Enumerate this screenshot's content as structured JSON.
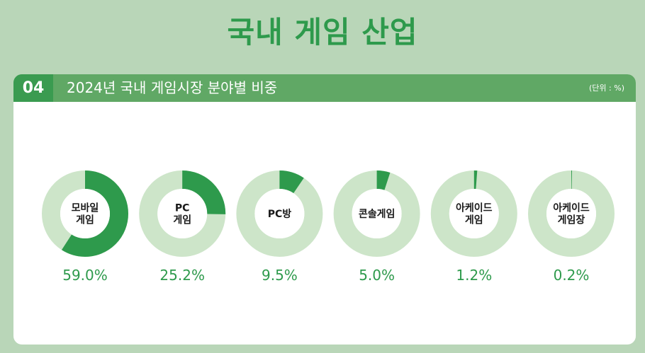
{
  "page": {
    "title": "국내 게임 산업"
  },
  "section": {
    "number": "04",
    "title": "2024년 국내 게임시장 분야별 비중",
    "unit": "(단위 : %)"
  },
  "colors": {
    "accent": "#2e9a4c",
    "track": "#cde5c9",
    "header": "#60a865",
    "background": "#b9d6b8"
  },
  "chart_data": {
    "type": "pie",
    "title": "2024년 국내 게임시장 분야별 비중",
    "unit": "%",
    "categories": [
      [
        "모바일",
        "게임"
      ],
      [
        "PC",
        "게임"
      ],
      [
        "PC방"
      ],
      [
        "콘솔게임"
      ],
      [
        "아케이드",
        "게임"
      ],
      [
        "아케이드",
        "게임장"
      ]
    ],
    "values": [
      59.0,
      25.2,
      9.5,
      5.0,
      1.2,
      0.2
    ],
    "value_labels": [
      "59.0%",
      "25.2%",
      "9.5%",
      "5.0%",
      "1.2%",
      "0.2%"
    ]
  }
}
